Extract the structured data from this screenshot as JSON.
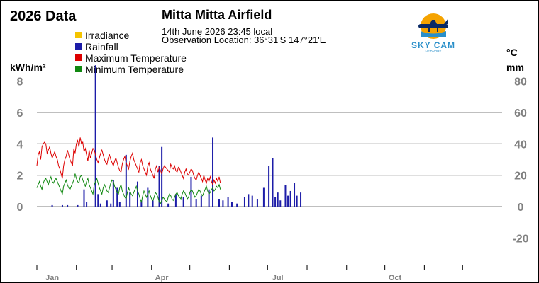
{
  "header": {
    "chart_title": "2026 Data",
    "station_name": "Mitta Mitta Airfield",
    "datetime": "14th June 2026  23:45 local",
    "location": "Observation Location: 36°31'S 147°21'E"
  },
  "logo": {
    "name": "SKY CAM",
    "tagline": "NETWORK",
    "icon": "airplane-sunset-icon"
  },
  "units": {
    "left": "kWh/m²",
    "right_top": "°C",
    "right_bottom": "mm"
  },
  "colors": {
    "irradiance": "#f5c400",
    "rainfall": "#1c1ca8",
    "max_temp": "#dd0000",
    "min_temp": "#118811",
    "grid": "#000000",
    "tick_text": "#808080",
    "logo_orange": "#f5a300",
    "logo_blue": "#2a8fc9"
  },
  "chart_data": {
    "type": "line",
    "legend": [
      {
        "name": "Irradiance",
        "color": "#f5c400"
      },
      {
        "name": "Rainfall",
        "color": "#1c1ca8"
      },
      {
        "name": "Maximum Temperature",
        "color": "#dd0000"
      },
      {
        "name": "Minimum Temperature",
        "color": "#118811"
      }
    ],
    "legend_position": "top-left",
    "x_axis": {
      "range_days": [
        0,
        365
      ],
      "tick_labels": [
        "Jan",
        "Apr",
        "Jul",
        "Oct"
      ],
      "tick_label_days": [
        12,
        98,
        189,
        281
      ],
      "month_start_days": [
        0,
        31,
        59,
        90,
        120,
        151,
        181,
        212,
        243,
        273,
        304,
        334
      ]
    },
    "y_left": {
      "label": "kWh/m²",
      "ticks": [
        0,
        2,
        4,
        6,
        8
      ],
      "range": [
        -4,
        10
      ]
    },
    "y_right": {
      "label": "°C / mm",
      "ticks": [
        -20,
        0,
        20,
        40,
        60,
        80
      ],
      "range": [
        -40,
        100
      ]
    },
    "grid": "horizontal at 0, 20, 40, 60, 80 (right scale)",
    "series": [
      {
        "name": "Maximum Temperature",
        "axis": "right",
        "values": [
          26,
          33,
          35,
          30,
          38,
          40,
          41,
          40,
          34,
          36,
          38,
          34,
          31,
          33,
          35,
          32,
          30,
          26,
          24,
          21,
          18,
          26,
          30,
          32,
          36,
          33,
          30,
          28,
          26,
          37,
          34,
          40,
          42,
          38,
          44,
          40,
          41,
          35,
          37,
          33,
          29,
          36,
          31,
          34,
          37,
          36,
          33,
          30,
          28,
          31,
          34,
          36,
          33,
          30,
          28,
          27,
          31,
          33,
          30,
          28,
          26,
          29,
          31,
          28,
          25,
          23,
          22,
          27,
          30,
          32,
          28,
          26,
          24,
          29,
          32,
          34,
          30,
          28,
          26,
          24,
          22,
          28,
          30,
          26,
          24,
          22,
          20,
          26,
          28,
          24,
          22,
          20,
          18,
          24,
          26,
          22,
          25,
          23,
          21,
          24,
          26,
          25,
          24,
          23,
          22,
          27,
          25,
          24,
          26,
          23,
          22,
          25,
          24,
          22,
          20,
          18,
          22,
          24,
          21,
          20,
          22,
          24,
          23,
          20,
          18,
          17,
          20,
          22,
          20,
          18,
          16,
          20,
          17,
          15,
          18,
          16,
          19,
          16,
          14,
          17,
          15,
          18,
          16,
          19,
          15
        ]
      },
      {
        "name": "Minimum Temperature",
        "axis": "right",
        "values": [
          12,
          14,
          16,
          13,
          11,
          15,
          17,
          18,
          16,
          14,
          17,
          19,
          16,
          15,
          17,
          18,
          16,
          14,
          12,
          10,
          8,
          13,
          15,
          17,
          14,
          12,
          11,
          13,
          15,
          17,
          21,
          18,
          16,
          15,
          19,
          20,
          17,
          15,
          13,
          16,
          18,
          14,
          12,
          10,
          8,
          14,
          16,
          18,
          15,
          12,
          10,
          8,
          12,
          14,
          12,
          10,
          9,
          12,
          15,
          17,
          16,
          13,
          11,
          9,
          8,
          12,
          14,
          10,
          8,
          6,
          5,
          9,
          12,
          10,
          8,
          7,
          9,
          11,
          13,
          10,
          8,
          5,
          3,
          7,
          10,
          8,
          6,
          8,
          10,
          7,
          5,
          4,
          6,
          9,
          8,
          6,
          3,
          2,
          4,
          6,
          5,
          4,
          3,
          6,
          8,
          7,
          5,
          4,
          6,
          8,
          9,
          7,
          6,
          5,
          8,
          10,
          9,
          7,
          5,
          6,
          9,
          11,
          10,
          8,
          6,
          7,
          9,
          11,
          10,
          8,
          7,
          9,
          11,
          13,
          10,
          8,
          9,
          11,
          12,
          10,
          11,
          13,
          12,
          14,
          11
        ]
      },
      {
        "name": "Rainfall",
        "axis": "right",
        "type": "bar",
        "points": [
          [
            12,
            1
          ],
          [
            20,
            1
          ],
          [
            24,
            1
          ],
          [
            32,
            1
          ],
          [
            37,
            11
          ],
          [
            39,
            3
          ],
          [
            46,
            90
          ],
          [
            48,
            8
          ],
          [
            50,
            2
          ],
          [
            55,
            4
          ],
          [
            58,
            2
          ],
          [
            60,
            17
          ],
          [
            63,
            12
          ],
          [
            65,
            3
          ],
          [
            70,
            33
          ],
          [
            73,
            9
          ],
          [
            79,
            16
          ],
          [
            82,
            4
          ],
          [
            87,
            12
          ],
          [
            91,
            4
          ],
          [
            96,
            26
          ],
          [
            98,
            38
          ],
          [
            103,
            2
          ],
          [
            109,
            8
          ],
          [
            115,
            6
          ],
          [
            121,
            19
          ],
          [
            125,
            5
          ],
          [
            129,
            7
          ],
          [
            135,
            11
          ],
          [
            138,
            44
          ],
          [
            143,
            5
          ],
          [
            146,
            4
          ],
          [
            150,
            6
          ],
          [
            153,
            3
          ],
          [
            157,
            2
          ],
          [
            163,
            6
          ],
          [
            166,
            8
          ],
          [
            169,
            7
          ],
          [
            173,
            5
          ],
          [
            178,
            12
          ],
          [
            182,
            26
          ],
          [
            185,
            31
          ],
          [
            187,
            6
          ],
          [
            189,
            9
          ],
          [
            191,
            4
          ],
          [
            195,
            14
          ],
          [
            197,
            7
          ],
          [
            199,
            10
          ],
          [
            202,
            15
          ],
          [
            204,
            7
          ],
          [
            207,
            9
          ]
        ]
      },
      {
        "name": "Irradiance",
        "axis": "left",
        "values": []
      }
    ]
  }
}
